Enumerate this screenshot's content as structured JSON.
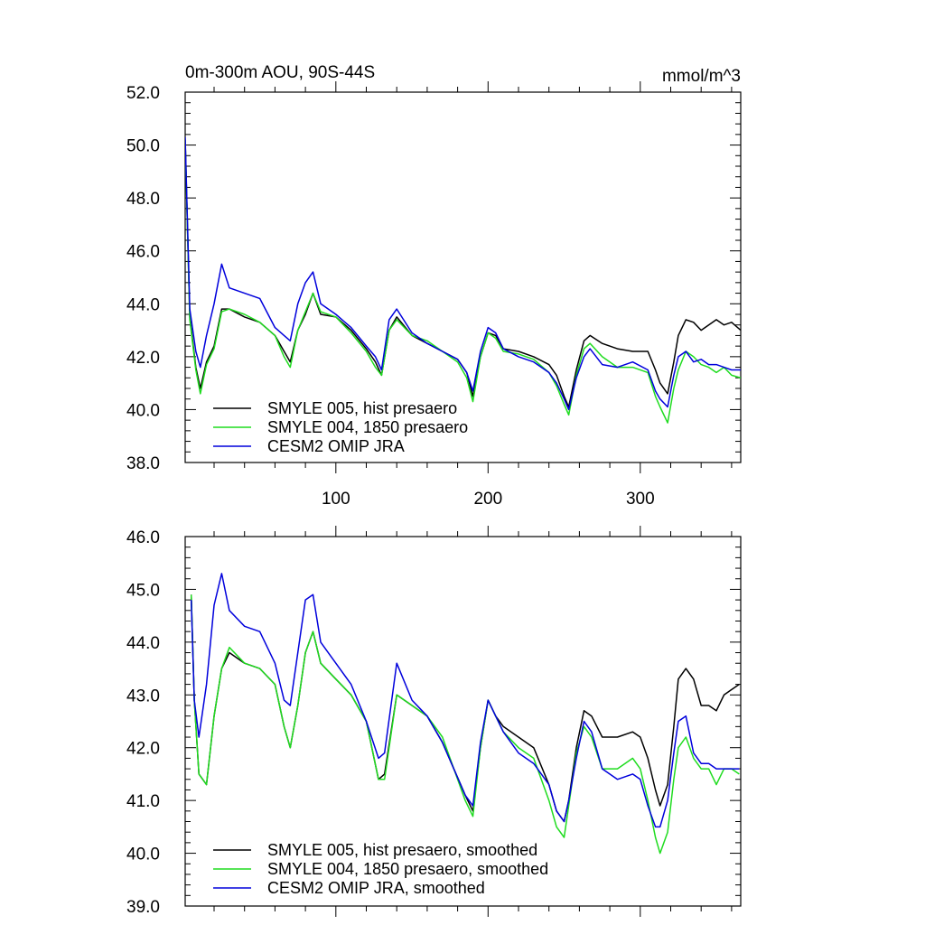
{
  "chart_data": [
    {
      "type": "line",
      "title_left": "0m-300m AOU, 90S-44S",
      "title_right": "mmol/m^3",
      "xlim": [
        1,
        366
      ],
      "ylim": [
        38.0,
        52.0
      ],
      "yticks": [
        "38.0",
        "40.0",
        "42.0",
        "44.0",
        "46.0",
        "48.0",
        "50.0",
        "52.0"
      ],
      "xticks": [
        "100",
        "200",
        "300"
      ],
      "legend_position": "bottom-left",
      "series": [
        {
          "name": "SMYLE 005, hist presaero",
          "color": "#000000",
          "x": [
            1,
            4,
            8,
            11,
            15,
            20,
            25,
            30,
            40,
            50,
            60,
            66,
            70,
            75,
            80,
            85,
            90,
            100,
            110,
            120,
            126,
            130,
            135,
            140,
            150,
            160,
            170,
            180,
            186,
            190,
            195,
            200,
            205,
            210,
            220,
            230,
            240,
            245,
            250,
            253,
            258,
            263,
            267,
            275,
            285,
            295,
            305,
            310,
            313,
            318,
            322,
            325,
            330,
            335,
            340,
            345,
            350,
            355,
            360,
            366
          ],
          "values": [
            50.2,
            43.5,
            41.6,
            40.8,
            41.8,
            42.4,
            43.8,
            43.8,
            43.5,
            43.3,
            42.8,
            42.2,
            41.8,
            43.0,
            43.6,
            44.4,
            43.6,
            43.5,
            43.0,
            42.3,
            41.8,
            41.3,
            43.0,
            43.5,
            42.8,
            42.5,
            42.2,
            41.9,
            41.4,
            40.5,
            42.0,
            42.9,
            42.8,
            42.3,
            42.2,
            42.0,
            41.7,
            41.3,
            40.5,
            40.1,
            41.5,
            42.6,
            42.8,
            42.5,
            42.3,
            42.2,
            42.2,
            41.5,
            41.0,
            40.6,
            41.8,
            42.8,
            43.4,
            43.3,
            43.0,
            43.2,
            43.4,
            43.2,
            43.3,
            43.0
          ]
        },
        {
          "name": "SMYLE 004, 1850 presaero",
          "color": "#1fdc1f",
          "x": [
            1,
            4,
            8,
            11,
            15,
            20,
            25,
            30,
            40,
            50,
            60,
            66,
            70,
            75,
            80,
            85,
            90,
            100,
            110,
            120,
            126,
            130,
            135,
            140,
            150,
            160,
            170,
            180,
            186,
            190,
            195,
            200,
            205,
            210,
            220,
            230,
            240,
            245,
            250,
            253,
            258,
            263,
            267,
            275,
            285,
            295,
            305,
            310,
            313,
            318,
            322,
            325,
            330,
            335,
            340,
            345,
            350,
            355,
            360,
            366
          ],
          "values": [
            50.2,
            43.4,
            41.5,
            40.6,
            41.7,
            42.3,
            43.7,
            43.8,
            43.6,
            43.3,
            42.8,
            42.0,
            41.6,
            43.0,
            43.7,
            44.4,
            43.7,
            43.5,
            42.9,
            42.2,
            41.6,
            41.3,
            43.0,
            43.4,
            42.8,
            42.6,
            42.2,
            41.8,
            41.2,
            40.3,
            42.0,
            42.9,
            42.7,
            42.2,
            42.1,
            41.9,
            41.4,
            40.9,
            40.2,
            39.8,
            41.3,
            42.3,
            42.5,
            42.0,
            41.6,
            41.6,
            41.4,
            40.5,
            40.1,
            39.5,
            40.8,
            41.5,
            42.2,
            42.0,
            41.7,
            41.6,
            41.4,
            41.6,
            41.3,
            41.2
          ]
        },
        {
          "name": "CESM2 OMIP JRA",
          "color": "#0000dc",
          "x": [
            1,
            4,
            8,
            11,
            15,
            20,
            25,
            30,
            40,
            50,
            60,
            66,
            70,
            75,
            80,
            85,
            90,
            100,
            110,
            120,
            126,
            130,
            135,
            140,
            150,
            160,
            170,
            180,
            186,
            190,
            195,
            200,
            205,
            210,
            220,
            230,
            240,
            245,
            250,
            253,
            258,
            263,
            267,
            275,
            285,
            295,
            305,
            310,
            313,
            318,
            322,
            325,
            330,
            335,
            340,
            345,
            350,
            355,
            360,
            366
          ],
          "values": [
            50.3,
            43.8,
            42.2,
            41.6,
            42.8,
            44.0,
            45.5,
            44.6,
            44.4,
            44.2,
            43.1,
            42.8,
            42.6,
            44.0,
            44.8,
            45.2,
            44.0,
            43.6,
            43.1,
            42.4,
            42.0,
            41.5,
            43.4,
            43.8,
            42.9,
            42.5,
            42.2,
            41.9,
            41.4,
            40.7,
            42.2,
            43.1,
            42.9,
            42.3,
            42.0,
            41.8,
            41.4,
            41.0,
            40.4,
            40.0,
            41.2,
            42.0,
            42.3,
            41.7,
            41.6,
            41.8,
            41.5,
            40.7,
            40.4,
            40.1,
            41.3,
            42.0,
            42.2,
            41.8,
            41.9,
            41.7,
            41.7,
            41.6,
            41.5,
            41.5
          ]
        }
      ]
    },
    {
      "type": "line",
      "xlim": [
        1,
        366
      ],
      "ylim": [
        39.0,
        46.0
      ],
      "yticks": [
        "39.0",
        "40.0",
        "41.0",
        "42.0",
        "43.0",
        "44.0",
        "45.0",
        "46.0"
      ],
      "legend_position": "bottom-left",
      "series": [
        {
          "name": "SMYLE 005, hist presaero, smoothed",
          "color": "#000000",
          "x": [
            5,
            7,
            10,
            15,
            20,
            25,
            30,
            40,
            50,
            60,
            66,
            70,
            75,
            80,
            85,
            90,
            100,
            110,
            120,
            128,
            132,
            140,
            150,
            160,
            170,
            185,
            190,
            195,
            200,
            205,
            210,
            220,
            230,
            240,
            245,
            250,
            253,
            258,
            263,
            268,
            275,
            285,
            295,
            300,
            305,
            310,
            313,
            318,
            322,
            325,
            330,
            335,
            340,
            345,
            350,
            355,
            360,
            365
          ],
          "values": [
            44.9,
            42.9,
            41.5,
            41.3,
            42.6,
            43.5,
            43.8,
            43.6,
            43.5,
            43.2,
            42.4,
            42.0,
            42.8,
            43.8,
            44.2,
            43.6,
            43.3,
            43.0,
            42.5,
            41.4,
            41.5,
            43.0,
            42.8,
            42.6,
            42.1,
            41.1,
            40.8,
            42.0,
            42.9,
            42.6,
            42.4,
            42.2,
            42.0,
            41.3,
            40.8,
            40.6,
            41.0,
            42.0,
            42.7,
            42.6,
            42.2,
            42.2,
            42.3,
            42.2,
            41.8,
            41.2,
            40.9,
            41.3,
            42.4,
            43.3,
            43.5,
            43.3,
            42.8,
            42.8,
            42.7,
            43.0,
            43.1,
            43.2
          ]
        },
        {
          "name": "SMYLE 004, 1850 presaero, smoothed",
          "color": "#1fdc1f",
          "x": [
            5,
            7,
            10,
            15,
            20,
            25,
            30,
            40,
            50,
            60,
            66,
            70,
            75,
            80,
            85,
            90,
            100,
            110,
            120,
            128,
            132,
            140,
            150,
            160,
            170,
            185,
            190,
            195,
            200,
            205,
            210,
            220,
            230,
            240,
            245,
            250,
            253,
            258,
            263,
            268,
            275,
            285,
            295,
            300,
            305,
            310,
            313,
            318,
            322,
            325,
            330,
            335,
            340,
            345,
            350,
            355,
            360,
            365
          ],
          "values": [
            44.9,
            42.9,
            41.5,
            41.3,
            42.6,
            43.5,
            43.9,
            43.6,
            43.5,
            43.2,
            42.4,
            42.0,
            42.8,
            43.8,
            44.2,
            43.6,
            43.3,
            43.0,
            42.5,
            41.4,
            41.4,
            43.0,
            42.8,
            42.6,
            42.2,
            41.0,
            40.7,
            42.0,
            42.9,
            42.6,
            42.3,
            42.0,
            41.8,
            41.0,
            40.5,
            40.3,
            40.9,
            41.9,
            42.4,
            42.2,
            41.6,
            41.6,
            41.8,
            41.6,
            41.0,
            40.3,
            40.0,
            40.4,
            41.4,
            42.0,
            42.2,
            41.8,
            41.6,
            41.6,
            41.3,
            41.6,
            41.6,
            41.5
          ]
        },
        {
          "name": "CESM2 OMIP JRA, smoothed",
          "color": "#0000dc",
          "x": [
            5,
            7,
            10,
            15,
            20,
            25,
            30,
            40,
            50,
            60,
            66,
            70,
            75,
            80,
            85,
            90,
            100,
            110,
            120,
            128,
            132,
            140,
            150,
            160,
            170,
            185,
            190,
            195,
            200,
            205,
            210,
            220,
            230,
            240,
            245,
            250,
            253,
            258,
            263,
            268,
            275,
            285,
            295,
            300,
            305,
            310,
            313,
            318,
            322,
            325,
            330,
            335,
            340,
            345,
            350,
            355,
            360,
            365
          ],
          "values": [
            44.8,
            42.9,
            42.2,
            43.2,
            44.7,
            45.3,
            44.6,
            44.3,
            44.2,
            43.6,
            42.9,
            42.8,
            43.8,
            44.8,
            44.9,
            44.0,
            43.6,
            43.2,
            42.5,
            41.8,
            41.9,
            43.6,
            42.9,
            42.6,
            42.1,
            41.1,
            40.9,
            42.1,
            42.9,
            42.6,
            42.3,
            41.9,
            41.7,
            41.3,
            40.8,
            40.6,
            41.0,
            41.8,
            42.5,
            42.3,
            41.6,
            41.4,
            41.5,
            41.4,
            40.9,
            40.5,
            40.5,
            41.0,
            41.9,
            42.5,
            42.6,
            41.9,
            41.7,
            41.7,
            41.6,
            41.6,
            41.6,
            41.6
          ]
        }
      ]
    }
  ]
}
